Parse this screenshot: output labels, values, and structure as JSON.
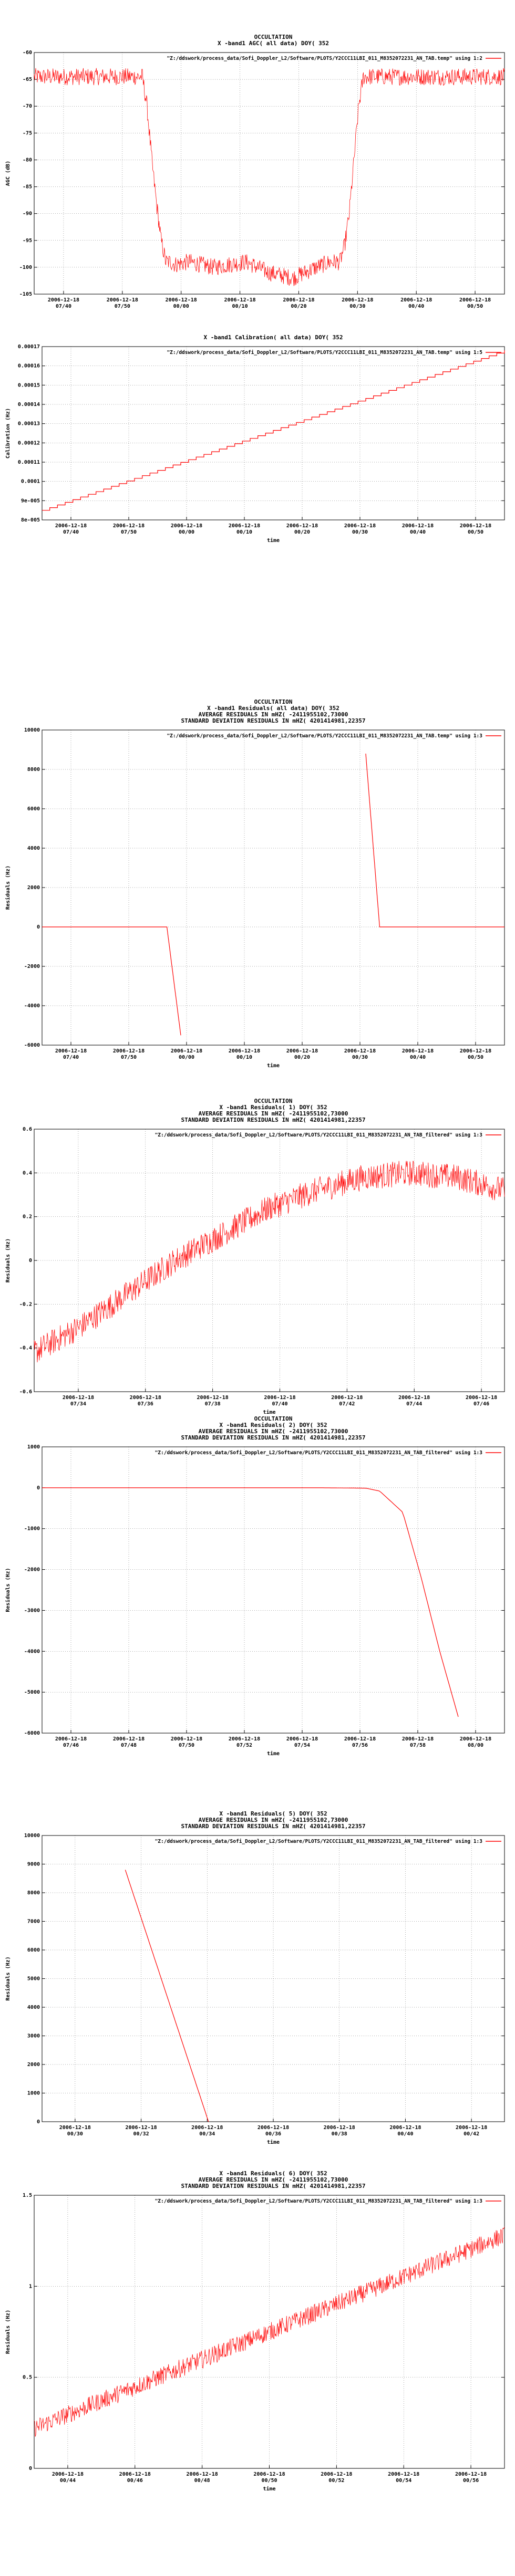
{
  "colors": {
    "series": "#ff0000",
    "axis": "#000000",
    "background": "#ffffff"
  },
  "chart_data": [
    {
      "type": "line",
      "title_lines": [
        "OCCULTATION",
        "X -band1 AGC( all data) DOY( 352"
      ],
      "ylabel": "AGC (dB)",
      "xlabel": "",
      "legend": "\"Z:/ddswork/process_data/Sofi_Doppler_L2/Software/PLOTS/Y2CCC11LBI_011_M8352072231_AN_TAB.temp\" using 1:2",
      "legend_position": "top-right",
      "ylim": [
        -105,
        -60
      ],
      "yticks": [
        "-60",
        "-65",
        "-70",
        "-75",
        "-80",
        "-85",
        "-90",
        "-95",
        "-100",
        "-105"
      ],
      "xtick_labels": [
        [
          "2006-12-18",
          "07/40"
        ],
        [
          "2006-12-18",
          "07/50"
        ],
        [
          "2006-12-18",
          "00/00"
        ],
        [
          "2006-12-18",
          "00/10"
        ],
        [
          "2006-12-18",
          "00/20"
        ],
        [
          "2006-12-18",
          "00/30"
        ],
        [
          "2006-12-18",
          "00/40"
        ],
        [
          "2006-12-18",
          "00/50"
        ]
      ],
      "x": [
        0,
        0.23,
        0.24,
        0.25,
        0.26,
        0.27,
        0.28,
        0.29,
        0.3,
        0.33,
        0.38,
        0.45,
        0.5,
        0.55,
        0.6,
        0.63,
        0.65,
        0.66,
        0.67,
        0.68,
        0.69,
        0.7,
        0.72,
        1.0
      ],
      "y": [
        -64.5,
        -64.5,
        -70,
        -80,
        -88,
        -95,
        -99,
        -99,
        -99.5,
        -99,
        -100,
        -99,
        -101,
        -102,
        -100,
        -99,
        -99,
        -96,
        -90,
        -80,
        -70,
        -64.5,
        -64.5,
        -64.5
      ],
      "noise": 1.6,
      "grid": true
    },
    {
      "type": "line",
      "title_lines": [
        "X -band1 Calibration( all data) DOY( 352"
      ],
      "ylabel": "Calibration (Hz)",
      "xlabel": "time",
      "legend": "\"Z:/ddswork/process_data/Sofi_Doppler_L2/Software/PLOTS/Y2CCC11LBI_011_M8352072231_AN_TAB.temp\" using 1:5",
      "legend_position": "top-right",
      "ylim": [
        8e-05,
        0.00017
      ],
      "yticks": [
        "0.00017",
        "0.00016",
        "0.00015",
        "0.00014",
        "0.00013",
        "0.00012",
        "0.00011",
        "0.0001",
        "9e-005",
        "8e-005"
      ],
      "xtick_labels": [
        [
          "2006-12-18",
          "07/40"
        ],
        [
          "2006-12-18",
          "07/50"
        ],
        [
          "2006-12-18",
          "00/00"
        ],
        [
          "2006-12-18",
          "00/10"
        ],
        [
          "2006-12-18",
          "00/20"
        ],
        [
          "2006-12-18",
          "00/30"
        ],
        [
          "2006-12-18",
          "00/40"
        ],
        [
          "2006-12-18",
          "00/50"
        ]
      ],
      "x": [
        0,
        1
      ],
      "y": [
        8.5e-05,
        0.000168
      ],
      "staircase": true,
      "grid": true
    },
    {
      "type": "line",
      "title_lines": [
        "OCCULTATION",
        "X -band1 Residuals( all data) DOY( 352",
        "AVERAGE RESIDUALS IN mHZ( -2411955102,73000",
        "STANDARD DEVIATION RESIDUALS IN mHZ( 4201414981,22357"
      ],
      "ylabel": "Residuals (Hz)",
      "xlabel": "time",
      "legend": "\"Z:/ddswork/process_data/Sofi_Doppler_L2/Software/PLOTS/Y2CCC11LBI_011_M8352072231_AN_TAB.temp\" using 1:3",
      "legend_position": "top-right",
      "ylim": [
        -6000,
        10000
      ],
      "yticks": [
        "10000",
        "8000",
        "6000",
        "4000",
        "2000",
        "0",
        "-2000",
        "-4000",
        "-6000"
      ],
      "xtick_labels": [
        [
          "2006-12-18",
          "07/40"
        ],
        [
          "2006-12-18",
          "07/50"
        ],
        [
          "2006-12-18",
          "00/00"
        ],
        [
          "2006-12-18",
          "00/10"
        ],
        [
          "2006-12-18",
          "00/20"
        ],
        [
          "2006-12-18",
          "00/30"
        ],
        [
          "2006-12-18",
          "00/40"
        ],
        [
          "2006-12-18",
          "00/50"
        ]
      ],
      "segments": [
        {
          "x": [
            0,
            0.27,
            0.3
          ],
          "y": [
            0,
            0,
            -5500
          ]
        },
        {
          "x": [
            0.7,
            0.73,
            1.0
          ],
          "y": [
            8800,
            0,
            0
          ]
        }
      ],
      "grid": true
    },
    {
      "type": "line",
      "title_lines": [
        "OCCULTATION",
        "X -band1 Residuals( 1) DOY( 352",
        "AVERAGE RESIDUALS IN mHZ( -2411955102,73000",
        "STANDARD DEVIATION RESIDUALS IN mHZ( 4201414981,22357"
      ],
      "ylabel": "Residuals (Hz)",
      "xlabel": "time",
      "legend": "\"Z:/ddswork/process_data/Sofi_Doppler_L2/Software/PLOTS/Y2CCC11LBI_011_M8352072231_AN_TAB_filtered\" using 1:3",
      "legend_position": "top-right",
      "ylim": [
        -0.6,
        0.6
      ],
      "yticks": [
        "0.6",
        "0.4",
        "0.2",
        "0",
        "-0.2",
        "-0.4",
        "-0.6"
      ],
      "xtick_labels": [
        [
          "2006-12-18",
          "07/34"
        ],
        [
          "2006-12-18",
          "07/36"
        ],
        [
          "2006-12-18",
          "07/38"
        ],
        [
          "2006-12-18",
          "07/40"
        ],
        [
          "2006-12-18",
          "07/42"
        ],
        [
          "2006-12-18",
          "07/44"
        ],
        [
          "2006-12-18",
          "07/46"
        ]
      ],
      "x": [
        0,
        0.1,
        0.2,
        0.3,
        0.4,
        0.5,
        0.6,
        0.7,
        0.8,
        0.9,
        1.0
      ],
      "y": [
        -0.42,
        -0.3,
        -0.15,
        0.0,
        0.12,
        0.24,
        0.32,
        0.38,
        0.4,
        0.38,
        0.32
      ],
      "noise": 0.06,
      "grid": true
    },
    {
      "type": "line",
      "title_lines": [
        "OCCULTATION",
        "X -band1 Residuals( 2) DOY( 352",
        "AVERAGE RESIDUALS IN mHZ( -2411955102,73000",
        "STANDARD DEVIATION RESIDUALS IN mHZ( 4201414981,22357"
      ],
      "ylabel": "Residuals (Hz)",
      "xlabel": "time",
      "legend": "\"Z:/ddswork/process_data/Sofi_Doppler_L2/Software/PLOTS/Y2CCC11LBI_011_M8352072231_AN_TAB_filtered\" using 1:3",
      "legend_position": "top-right",
      "ylim": [
        -6000,
        1000
      ],
      "yticks": [
        "1000",
        "0",
        "-1000",
        "-2000",
        "-3000",
        "-4000",
        "-5000",
        "-6000"
      ],
      "xtick_labels": [
        [
          "2006-12-18",
          "07/46"
        ],
        [
          "2006-12-18",
          "07/48"
        ],
        [
          "2006-12-18",
          "07/50"
        ],
        [
          "2006-12-18",
          "07/52"
        ],
        [
          "2006-12-18",
          "07/54"
        ],
        [
          "2006-12-18",
          "07/56"
        ],
        [
          "2006-12-18",
          "07/58"
        ],
        [
          "2006-12-18",
          "08/00"
        ]
      ],
      "x": [
        0,
        0.6,
        0.7,
        0.73,
        0.78,
        0.82,
        0.86,
        0.9
      ],
      "y": [
        0,
        0,
        -10,
        -80,
        -600,
        -2200,
        -4000,
        -5600
      ],
      "grid": true
    },
    {
      "type": "line",
      "title_lines": [
        "X -band1 Residuals( 5) DOY( 352",
        "AVERAGE RESIDUALS IN mHZ( -2411955102,73000",
        "STANDARD DEVIATION RESIDUALS IN mHZ( 4201414981,22357"
      ],
      "ylabel": "Residuals (Hz)",
      "xlabel": "time",
      "legend": "\"Z:/ddswork/process_data/Sofi_Doppler_L2/Software/PLOTS/Y2CCC11LBI_011_M8352072231_AN_TAB_filtered\" using 1:3",
      "legend_position": "top-right",
      "ylim": [
        0,
        10000
      ],
      "yticks": [
        "10000",
        "9000",
        "8000",
        "7000",
        "6000",
        "5000",
        "4000",
        "3000",
        "2000",
        "1000",
        "0"
      ],
      "xtick_labels": [
        [
          "2006-12-18",
          "00/30"
        ],
        [
          "2006-12-18",
          "00/32"
        ],
        [
          "2006-12-18",
          "00/34"
        ],
        [
          "2006-12-18",
          "00/36"
        ],
        [
          "2006-12-18",
          "00/38"
        ],
        [
          "2006-12-18",
          "00/40"
        ],
        [
          "2006-12-18",
          "00/42"
        ]
      ],
      "x": [
        0.18,
        0.36
      ],
      "y": [
        8800,
        0
      ],
      "grid": true
    },
    {
      "type": "line",
      "title_lines": [
        "X -band1 Residuals( 6) DOY( 352",
        "AVERAGE RESIDUALS IN mHZ( -2411955102,73000",
        "STANDARD DEVIATION RESIDUALS IN mHZ( 4201414981,22357"
      ],
      "ylabel": "Residuals (Hz)",
      "xlabel": "time",
      "legend": "\"Z:/ddswork/process_data/Sofi_Doppler_L2/Software/PLOTS/Y2CCC11LBI_011_M8352072231_AN_TAB_filtered\" using 1:3",
      "legend_position": "top-right",
      "ylim": [
        0,
        1.5
      ],
      "yticks": [
        "1.5",
        "1",
        "0.5",
        "0"
      ],
      "xtick_labels": [
        [
          "2006-12-18",
          "00/44"
        ],
        [
          "2006-12-18",
          "00/46"
        ],
        [
          "2006-12-18",
          "00/48"
        ],
        [
          "2006-12-18",
          "00/50"
        ],
        [
          "2006-12-18",
          "00/52"
        ],
        [
          "2006-12-18",
          "00/54"
        ],
        [
          "2006-12-18",
          "00/56"
        ]
      ],
      "x": [
        0,
        1
      ],
      "y": [
        0.22,
        1.28
      ],
      "noise": 0.05,
      "grid": true
    }
  ]
}
